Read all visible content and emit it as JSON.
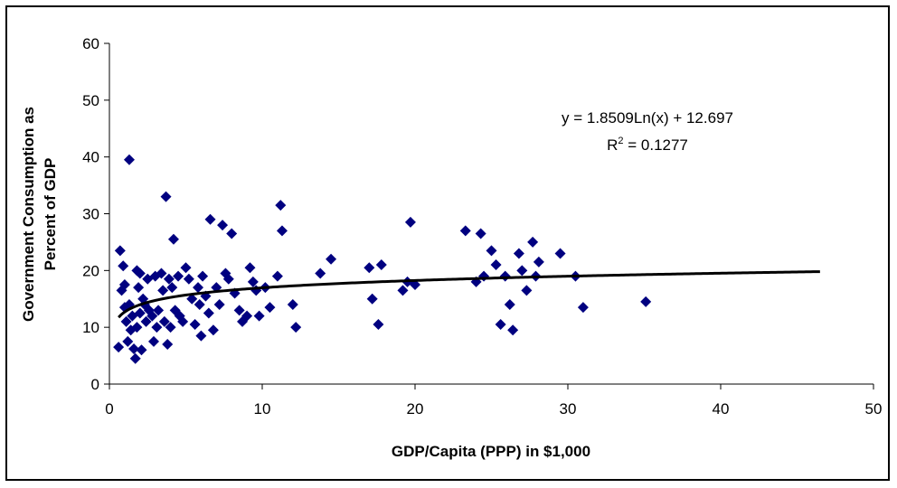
{
  "chart_data": {
    "type": "scatter",
    "title": "",
    "xlabel": "GDP/Capita (PPP) in $1,000",
    "ylabel_lines": [
      "Government Consumption as",
      "Percent of GDP"
    ],
    "xlim": [
      0,
      50
    ],
    "ylim": [
      0,
      60
    ],
    "xticks": [
      0,
      10,
      20,
      30,
      40,
      50
    ],
    "yticks": [
      0,
      10,
      20,
      30,
      40,
      50,
      60
    ],
    "grid": false,
    "marker_color": "#000080",
    "trend_color": "#000000",
    "trendline": {
      "type": "log",
      "a": 1.8509,
      "b": 12.697,
      "x_range": [
        0.6,
        46.5
      ],
      "equation_label": "y = 1.8509Ln(x) + 12.697",
      "r2_prefix": "R",
      "r2_sup": "2",
      "r2_rest": " = 0.1277"
    },
    "points": [
      [
        0.6,
        6.5
      ],
      [
        0.7,
        23.5
      ],
      [
        0.8,
        16.5
      ],
      [
        0.9,
        20.8
      ],
      [
        1.0,
        17.5
      ],
      [
        1.0,
        13.5
      ],
      [
        1.1,
        11.0
      ],
      [
        1.2,
        7.5
      ],
      [
        1.3,
        39.5
      ],
      [
        1.3,
        14.0
      ],
      [
        1.4,
        9.5
      ],
      [
        1.5,
        12.0
      ],
      [
        1.6,
        6.2
      ],
      [
        1.7,
        4.5
      ],
      [
        1.8,
        20.0
      ],
      [
        1.8,
        10.0
      ],
      [
        1.9,
        17.0
      ],
      [
        2.0,
        12.5
      ],
      [
        2.0,
        19.5
      ],
      [
        2.1,
        6.0
      ],
      [
        2.2,
        15.0
      ],
      [
        2.3,
        14.0
      ],
      [
        2.4,
        11.0
      ],
      [
        2.5,
        18.5
      ],
      [
        2.6,
        13.0
      ],
      [
        2.8,
        12.0
      ],
      [
        2.9,
        7.5
      ],
      [
        3.0,
        19.0
      ],
      [
        3.1,
        10.0
      ],
      [
        3.2,
        13.0
      ],
      [
        3.4,
        19.5
      ],
      [
        3.5,
        16.5
      ],
      [
        3.6,
        11.0
      ],
      [
        3.7,
        33.0
      ],
      [
        3.8,
        7.0
      ],
      [
        3.9,
        18.5
      ],
      [
        4.0,
        10.0
      ],
      [
        4.1,
        17.0
      ],
      [
        4.2,
        25.5
      ],
      [
        4.3,
        13.0
      ],
      [
        4.5,
        19.0
      ],
      [
        4.6,
        12.0
      ],
      [
        4.8,
        11.0
      ],
      [
        5.0,
        20.5
      ],
      [
        5.2,
        18.5
      ],
      [
        5.4,
        15.0
      ],
      [
        5.6,
        10.5
      ],
      [
        5.8,
        17.0
      ],
      [
        5.9,
        14.0
      ],
      [
        6.0,
        8.5
      ],
      [
        6.1,
        19.0
      ],
      [
        6.3,
        15.5
      ],
      [
        6.5,
        12.5
      ],
      [
        6.6,
        29.0
      ],
      [
        6.8,
        9.5
      ],
      [
        7.0,
        17.0
      ],
      [
        7.2,
        14.0
      ],
      [
        7.4,
        28.0
      ],
      [
        7.6,
        19.5
      ],
      [
        7.8,
        18.5
      ],
      [
        8.0,
        26.5
      ],
      [
        8.2,
        16.0
      ],
      [
        8.5,
        13.0
      ],
      [
        8.7,
        11.0
      ],
      [
        9.0,
        12.0
      ],
      [
        9.2,
        20.5
      ],
      [
        9.4,
        18.0
      ],
      [
        9.6,
        16.5
      ],
      [
        9.8,
        12.0
      ],
      [
        10.2,
        17.0
      ],
      [
        10.5,
        13.5
      ],
      [
        11.0,
        19.0
      ],
      [
        11.2,
        31.5
      ],
      [
        11.3,
        27.0
      ],
      [
        12.0,
        14.0
      ],
      [
        12.2,
        10.0
      ],
      [
        13.8,
        19.5
      ],
      [
        14.5,
        22.0
      ],
      [
        17.0,
        20.5
      ],
      [
        17.2,
        15.0
      ],
      [
        17.6,
        10.5
      ],
      [
        17.8,
        21.0
      ],
      [
        19.2,
        16.5
      ],
      [
        19.5,
        18.0
      ],
      [
        19.7,
        28.5
      ],
      [
        20.0,
        17.5
      ],
      [
        23.3,
        27.0
      ],
      [
        24.0,
        18.0
      ],
      [
        24.3,
        26.5
      ],
      [
        24.5,
        19.0
      ],
      [
        25.0,
        23.5
      ],
      [
        25.3,
        21.0
      ],
      [
        25.6,
        10.5
      ],
      [
        25.9,
        19.0
      ],
      [
        26.2,
        14.0
      ],
      [
        26.4,
        9.5
      ],
      [
        26.8,
        23.0
      ],
      [
        27.0,
        20.0
      ],
      [
        27.3,
        16.5
      ],
      [
        27.7,
        25.0
      ],
      [
        27.9,
        19.0
      ],
      [
        28.1,
        21.5
      ],
      [
        29.5,
        23.0
      ],
      [
        30.5,
        19.0
      ],
      [
        31.0,
        13.5
      ],
      [
        35.1,
        14.5
      ]
    ]
  }
}
